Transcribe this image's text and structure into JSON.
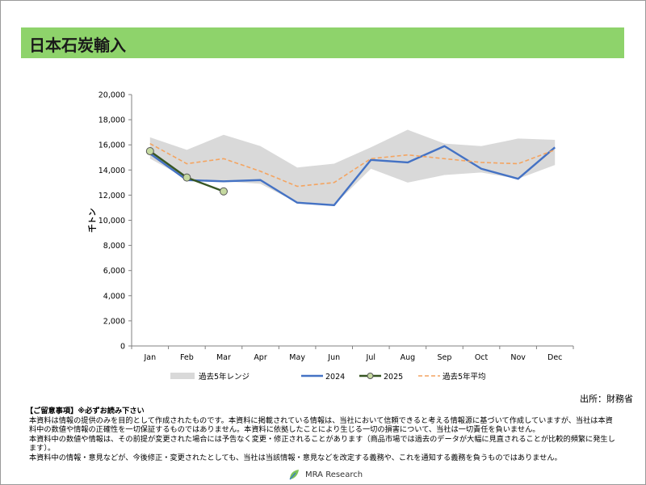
{
  "title": "日本石炭輸入",
  "source": "出所：財務省",
  "notes": {
    "heading": "【ご留意事項】※必ずお読み下さい",
    "lines": [
      "本資料は情報の提供のみを目的として作成されたものです。本資料に掲載されている情報は、当社において信頼できると考える情報源に基づいて作成していますが、当社は本資料中の数値や情報の正確性を一切保証するものではありません。本資料に依拠したことにより生じる一切の損害について、当社は一切責任を負いません。",
      "本資料中の数値や情報は、その前提が変更された場合には予告なく変更・修正されることがあります（商品市場では過去のデータが大幅に見直されることが比較的頻繁に発生します）。",
      "本資料中の情報・意見などが、今後修正・変更されたとしても、当社は当該情報・意見などを改定する義務や、これを通知する義務を負うものではありません。"
    ]
  },
  "logo_text": "MRA Research",
  "chart_data": {
    "type": "line",
    "ylabel": "千トン",
    "xlabel": "",
    "title": "",
    "ylim": [
      0,
      20000
    ],
    "yticks": [
      "0",
      "2,000",
      "4,000",
      "6,000",
      "8,000",
      "10,000",
      "12,000",
      "14,000",
      "16,000",
      "18,000",
      "20,000"
    ],
    "categories": [
      "Jan",
      "Feb",
      "Mar",
      "Apr",
      "May",
      "Jun",
      "Jul",
      "Aug",
      "Sep",
      "Oct",
      "Nov",
      "Dec"
    ],
    "range": {
      "name": "過去5年レンジ",
      "color": "#d9d9d9",
      "min": [
        14900,
        13300,
        13100,
        12900,
        11400,
        11200,
        14100,
        13000,
        13600,
        13800,
        13300,
        14400
      ],
      "max": [
        16600,
        15600,
        16800,
        15900,
        14200,
        14500,
        15800,
        17200,
        16100,
        15900,
        16500,
        16400
      ]
    },
    "series": [
      {
        "name": "2024",
        "color": "#4472c4",
        "values": [
          15300,
          13200,
          13100,
          13200,
          11400,
          11200,
          14800,
          14600,
          15900,
          14100,
          13300,
          15800
        ]
      },
      {
        "name": "2025",
        "color": "#375623",
        "marker_fill": "#c5d9a0",
        "values": [
          15500,
          13400,
          12300,
          null,
          null,
          null,
          null,
          null,
          null,
          null,
          null,
          null
        ]
      },
      {
        "name": "過去5年平均",
        "color": "#f4a460",
        "dashed": true,
        "values": [
          16100,
          14500,
          14900,
          13900,
          12700,
          13000,
          14900,
          15200,
          14900,
          14600,
          14500,
          15600
        ]
      }
    ],
    "legend_position": "bottom",
    "grid": false
  }
}
